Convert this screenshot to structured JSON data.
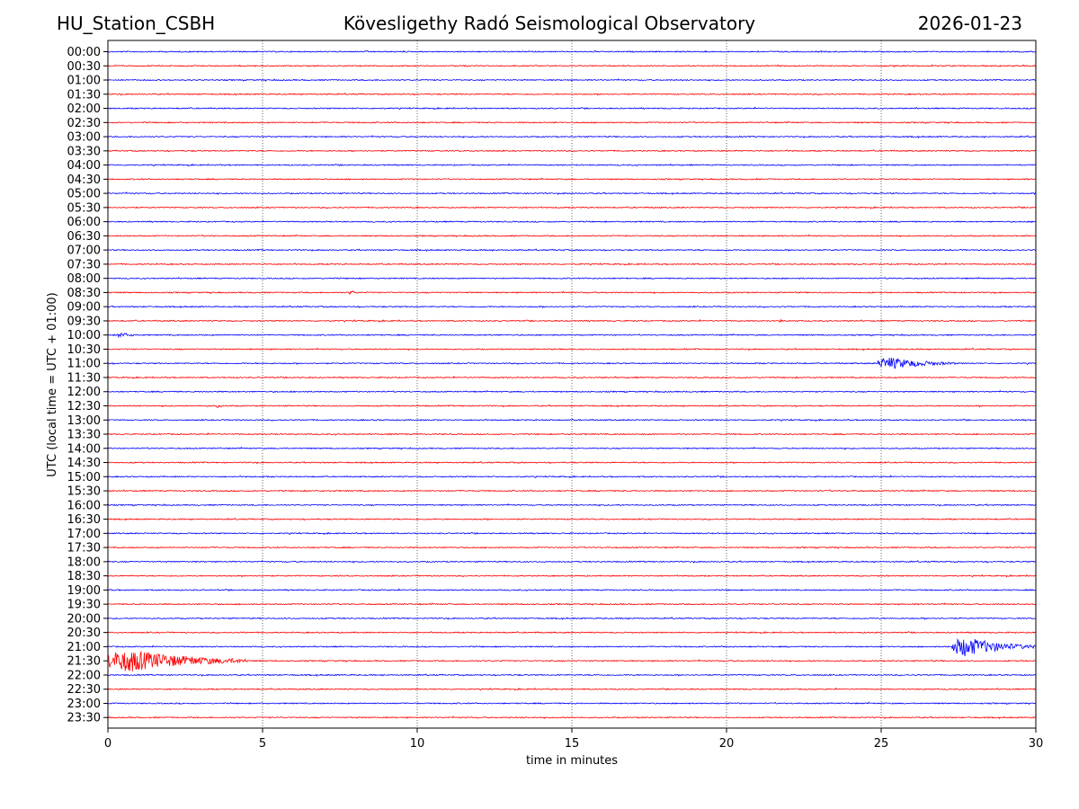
{
  "header": {
    "station": "HU_Station_CSBH",
    "observatory": "Kövesligethy Radó Seismological Observatory",
    "date": "2026-01-23"
  },
  "colors": {
    "trace_a": "#0000ff",
    "trace_b": "#ff0000",
    "grid": "#000000"
  },
  "chart_data": {
    "type": "line",
    "title": "Kövesligethy Radó Seismological Observatory",
    "xlabel": "time in minutes",
    "ylabel": "UTC (local time = UTC + 01:00)",
    "xlim": [
      0,
      30
    ],
    "x_ticks": [
      0,
      5,
      10,
      15,
      20,
      25,
      30
    ],
    "x_tick_labels": [
      "0",
      "5",
      "10",
      "15",
      "20",
      "25",
      "30"
    ],
    "grid": "vertical dotted",
    "legend": "none",
    "rows": [
      "00:00",
      "00:30",
      "01:00",
      "01:30",
      "02:00",
      "02:30",
      "03:00",
      "03:30",
      "04:00",
      "04:30",
      "05:00",
      "05:30",
      "06:00",
      "06:30",
      "07:00",
      "07:30",
      "08:00",
      "08:30",
      "09:00",
      "09:30",
      "10:00",
      "10:30",
      "11:00",
      "11:30",
      "12:00",
      "12:30",
      "13:00",
      "13:30",
      "14:00",
      "14:30",
      "15:00",
      "15:30",
      "16:00",
      "16:30",
      "17:00",
      "17:30",
      "18:00",
      "18:30",
      "19:00",
      "19:30",
      "20:00",
      "20:30",
      "21:00",
      "21:30",
      "22:00",
      "22:30",
      "23:00",
      "23:30"
    ],
    "row_colors": [
      "blue",
      "red"
    ],
    "events": [
      {
        "row": "08:30",
        "start_min": 7.8,
        "duration_min": 0.4,
        "amplitude": 2.5
      },
      {
        "row": "09:30",
        "start_min": 21.7,
        "duration_min": 0.2,
        "amplitude": 2
      },
      {
        "row": "10:00",
        "start_min": 0.3,
        "duration_min": 0.8,
        "amplitude": 3
      },
      {
        "row": "11:00",
        "start_min": 24.9,
        "duration_min": 2.5,
        "amplitude": 7
      },
      {
        "row": "12:30",
        "start_min": 3.5,
        "duration_min": 0.4,
        "amplitude": 2
      },
      {
        "row": "21:00",
        "start_min": 27.3,
        "duration_min": 2.7,
        "amplitude": 11
      },
      {
        "row": "21:30",
        "start_min": 0.0,
        "duration_min": 4.5,
        "amplitude": 13
      }
    ]
  }
}
